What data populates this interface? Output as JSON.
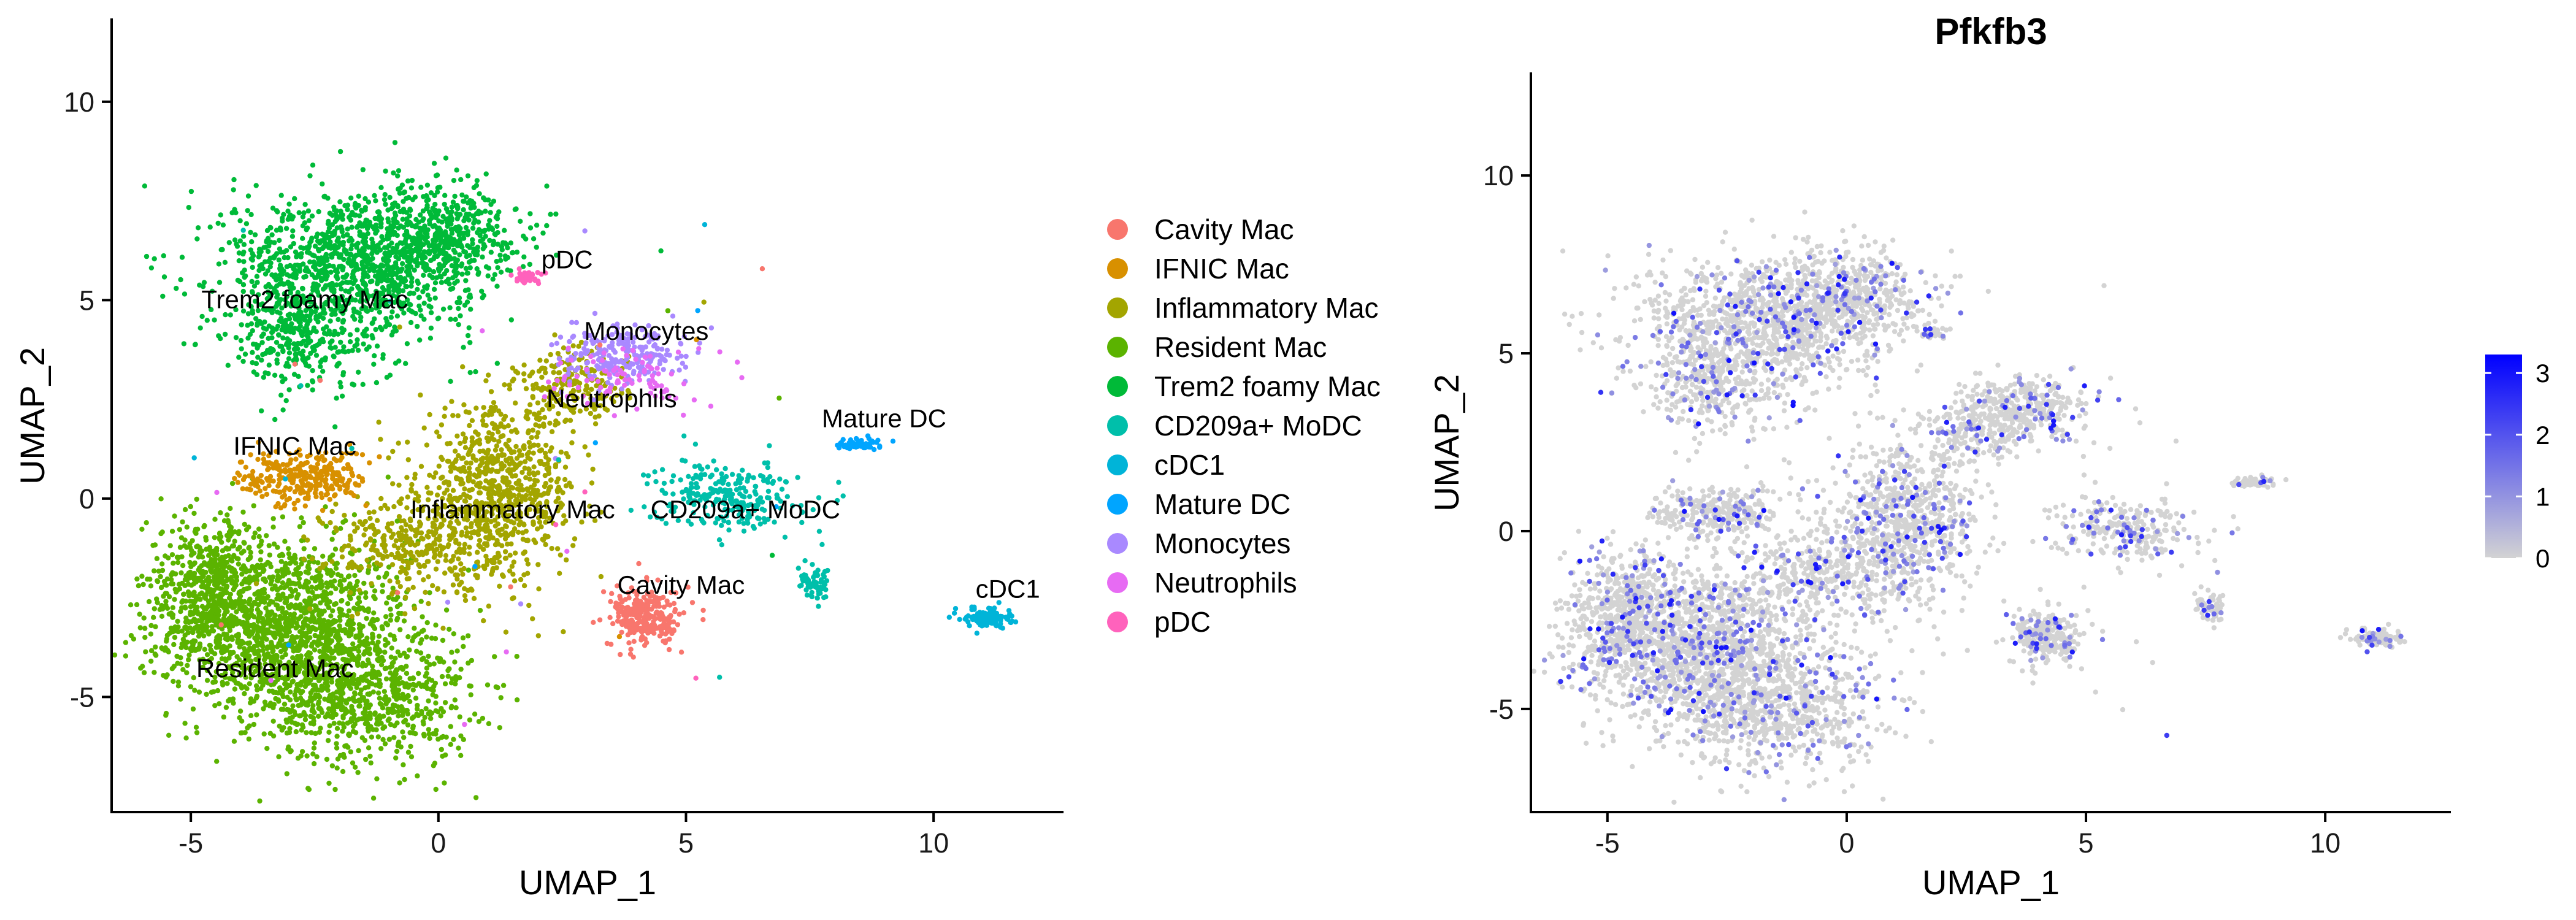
{
  "chart_data": [
    {
      "type": "scatter",
      "title": "",
      "xlabel": "UMAP_1",
      "ylabel": "UMAP_2",
      "xlim": [
        -6.6,
        12.6
      ],
      "ylim": [
        -7.9,
        12.1
      ],
      "xticks": [
        -5,
        0,
        5,
        10
      ],
      "yticks": [
        -5,
        0,
        5,
        10
      ],
      "legend_position": "right",
      "series": [
        {
          "name": "Cavity Mac",
          "color": "#F8766D"
        },
        {
          "name": "IFNIC Mac",
          "color": "#D89000"
        },
        {
          "name": "Inflammatory Mac",
          "color": "#A3A500"
        },
        {
          "name": "Resident Mac",
          "color": "#5BB300"
        },
        {
          "name": "Trem2 foamy Mac",
          "color": "#00BA38"
        },
        {
          "name": "CD209a+ MoDC",
          "color": "#00BFAA"
        },
        {
          "name": "cDC1",
          "color": "#00B4D8"
        },
        {
          "name": "Mature DC",
          "color": "#00A5FF"
        },
        {
          "name": "Monocytes",
          "color": "#A989FF"
        },
        {
          "name": "Neutrophils",
          "color": "#E76BF3"
        },
        {
          "name": "pDC",
          "color": "#FF62BC"
        }
      ],
      "clusters": [
        {
          "name": "Resident Mac",
          "label": "Resident Mac",
          "label_xy": [
            -3.3,
            -4.5
          ],
          "n": 2600,
          "blobs": [
            [
              -3.0,
              -3.3,
              1.5,
              1.4,
              0.55
            ],
            [
              -1.4,
              -5.0,
              1.3,
              1.1,
              0.25
            ],
            [
              -4.6,
              -2.3,
              0.8,
              1.2,
              0.2
            ]
          ]
        },
        {
          "name": "Inflammatory Mac",
          "label": "Inflammatory Mac",
          "label_xy": [
            1.5,
            -0.5
          ],
          "n": 1300,
          "blobs": [
            [
              1.2,
              0.2,
              1.0,
              1.3,
              0.6
            ],
            [
              -0.5,
              -1.2,
              1.1,
              0.8,
              0.25
            ],
            [
              2.7,
              2.8,
              0.7,
              0.6,
              0.15
            ]
          ]
        },
        {
          "name": "Trem2 foamy Mac",
          "label": "Trem2 foamy Mac",
          "label_xy": [
            -2.7,
            4.8
          ],
          "n": 1800,
          "blobs": [
            [
              -1.8,
              5.8,
              1.6,
              1.2,
              0.6
            ],
            [
              0.0,
              6.7,
              1.0,
              0.8,
              0.25
            ],
            [
              -2.8,
              4.0,
              0.9,
              0.8,
              0.15
            ]
          ]
        },
        {
          "name": "IFNIC Mac",
          "label": "IFNIC Mac",
          "label_xy": [
            -2.9,
            1.1
          ],
          "n": 280,
          "blobs": [
            [
              -2.7,
              0.5,
              0.8,
              0.45,
              1.0
            ]
          ]
        },
        {
          "name": "Cavity Mac",
          "label": "Cavity Mac",
          "label_xy": [
            4.9,
            -2.4
          ],
          "n": 260,
          "blobs": [
            [
              4.2,
              -3.0,
              0.45,
              0.45,
              1.0
            ]
          ]
        },
        {
          "name": "CD209a+ MoDC",
          "label": "CD209a+ MoDC",
          "label_xy": [
            6.2,
            -0.5
          ],
          "n": 330,
          "blobs": [
            [
              5.8,
              0.1,
              0.9,
              0.55,
              0.8
            ],
            [
              7.6,
              -2.2,
              0.2,
              0.25,
              0.2
            ]
          ]
        },
        {
          "name": "Monocytes",
          "label": "Monocytes",
          "label_xy": [
            4.2,
            4.0
          ],
          "n": 240,
          "blobs": [
            [
              3.7,
              3.6,
              0.8,
              0.45,
              1.0
            ]
          ]
        },
        {
          "name": "Neutrophils",
          "label": "Neutrophils",
          "label_xy": [
            3.5,
            2.3
          ],
          "n": 90,
          "blobs": [
            [
              3.8,
              3.0,
              0.9,
              0.5,
              1.0
            ]
          ]
        },
        {
          "name": "Mature DC",
          "label": "Mature DC",
          "label_xy": [
            9.0,
            1.8
          ],
          "n": 55,
          "blobs": [
            [
              8.5,
              1.4,
              0.3,
              0.1,
              1.0
            ]
          ]
        },
        {
          "name": "cDC1",
          "label": "cDC1",
          "label_xy": [
            11.5,
            -2.5
          ],
          "n": 120,
          "blobs": [
            [
              11.1,
              -3.0,
              0.3,
              0.15,
              1.0
            ]
          ]
        },
        {
          "name": "pDC",
          "label": "pDC",
          "label_xy": [
            2.6,
            5.8
          ],
          "n": 35,
          "blobs": [
            [
              1.8,
              5.6,
              0.18,
              0.12,
              1.0
            ]
          ]
        }
      ]
    },
    {
      "type": "scatter",
      "title": "Pfkfb3",
      "xlabel": "UMAP_1",
      "ylabel": "UMAP_2",
      "xlim": [
        -6.6,
        12.6
      ],
      "ylim": [
        -7.9,
        12.9
      ],
      "xticks": [
        -5,
        0,
        5,
        10
      ],
      "yticks": [
        -5,
        0,
        5,
        10
      ],
      "color_scale": {
        "min": 0,
        "max": 3.3,
        "ticks": [
          0,
          1,
          2,
          3
        ],
        "low_color": "#D3D3D3",
        "high_color": "#0000FF",
        "position": "right"
      }
    }
  ]
}
